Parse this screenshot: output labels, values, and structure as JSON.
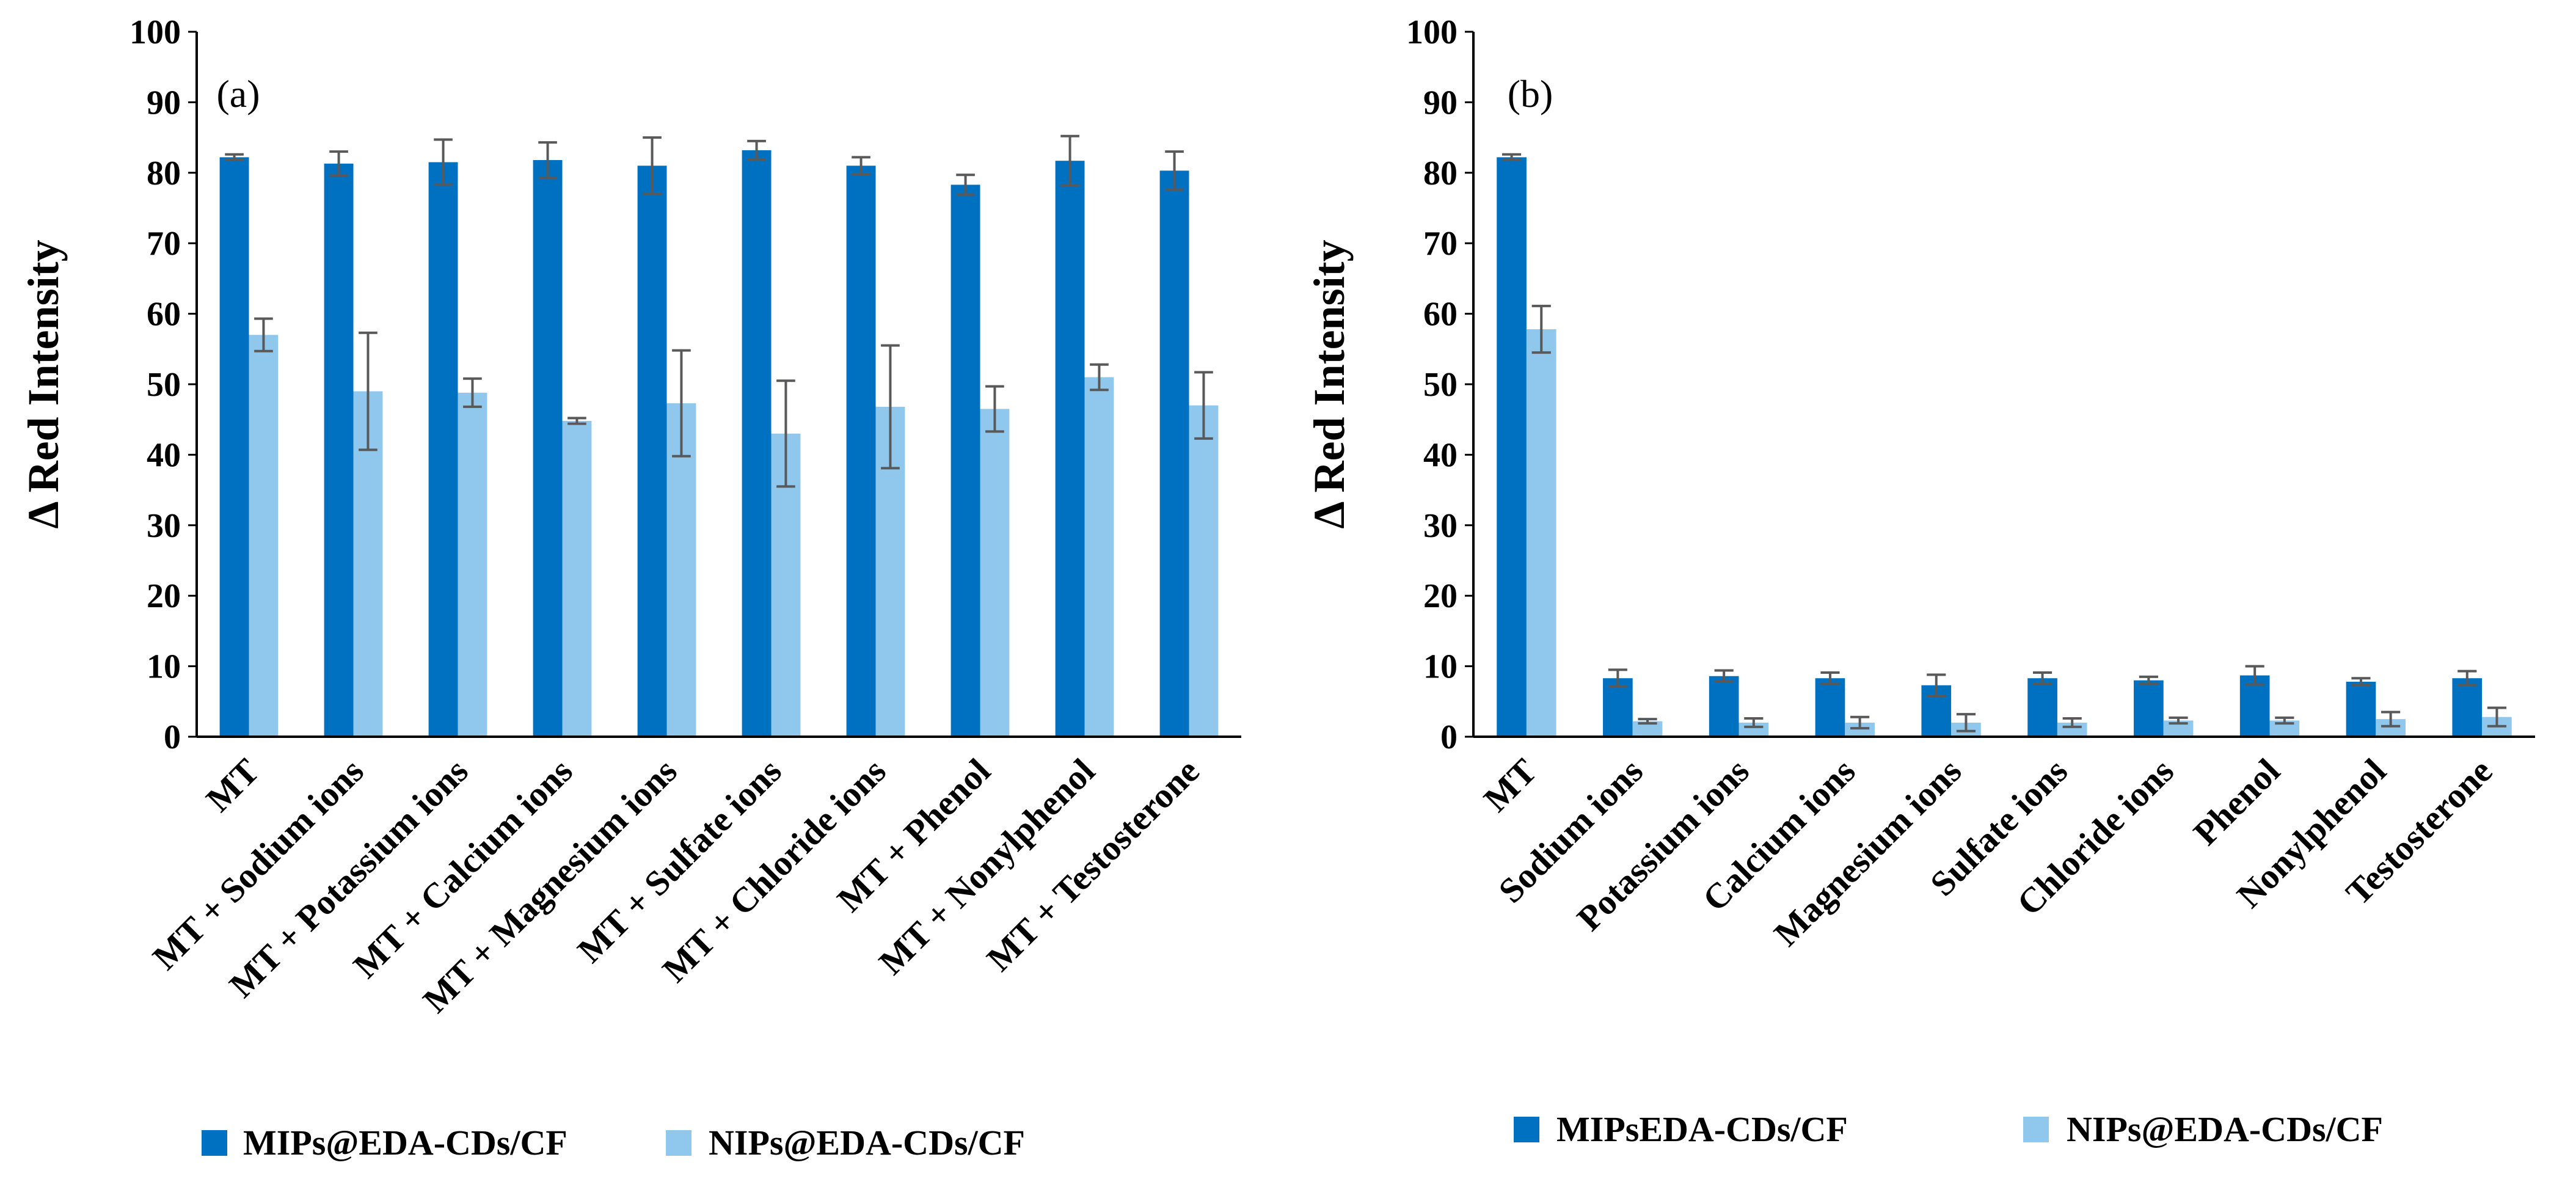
{
  "chart_data": [
    {
      "type": "bar",
      "panel_label": "(a)",
      "ylabel": "Δ Red Intensity",
      "ylim": [
        0,
        100
      ],
      "yticks": [
        0,
        10,
        20,
        30,
        40,
        50,
        60,
        70,
        80,
        90,
        100
      ],
      "grid": false,
      "legend_position": "bottom",
      "categories": [
        "MT",
        "MT + Sodium ions",
        "MT + Potassium ions",
        "MT + Calcium ions",
        "MT + Magnesium ions",
        "MT + Sulfate ions",
        "MT + Chloride ions",
        "MT + Phenol",
        "MT + Nonylphenol",
        "MT + Testosterone"
      ],
      "series": [
        {
          "name": "MIPs@EDA-CDs/CF",
          "color": "#0070C0",
          "values": [
            82.2,
            81.3,
            81.5,
            81.8,
            81.0,
            83.2,
            81.0,
            78.3,
            81.7,
            80.3
          ],
          "errors": [
            0.4,
            1.7,
            3.2,
            2.5,
            4.0,
            1.3,
            1.2,
            1.4,
            3.5,
            2.7
          ]
        },
        {
          "name": "NIPs@EDA-CDs/CF",
          "color": "#8FC8EC",
          "values": [
            57.0,
            49.0,
            48.8,
            44.8,
            47.3,
            43.0,
            46.8,
            46.5,
            51.0,
            47.0
          ],
          "errors": [
            2.3,
            8.3,
            2.0,
            0.4,
            7.5,
            7.5,
            8.7,
            3.2,
            1.8,
            4.7
          ]
        }
      ]
    },
    {
      "type": "bar",
      "panel_label": "(b)",
      "ylabel": "Δ Red Intensity",
      "ylim": [
        0,
        100
      ],
      "yticks": [
        0,
        10,
        20,
        30,
        40,
        50,
        60,
        70,
        80,
        90,
        100
      ],
      "grid": false,
      "legend_position": "bottom",
      "categories": [
        "MT",
        "Sodium ions",
        "Potassium ions",
        "Calcium ions",
        "Magnesium ions",
        "Sulfate ions",
        "Chloride ions",
        "Phenol",
        "Nonylphenol",
        "Testosterone"
      ],
      "series": [
        {
          "name": "MIPsEDA-CDs/CF",
          "color": "#0070C0",
          "values": [
            82.2,
            8.3,
            8.6,
            8.3,
            7.3,
            8.3,
            8.0,
            8.7,
            7.8,
            8.3
          ],
          "errors": [
            0.4,
            1.2,
            0.8,
            0.8,
            1.5,
            0.8,
            0.5,
            1.3,
            0.5,
            1.0
          ]
        },
        {
          "name": "NIPs@EDA-CDs/CF",
          "color": "#8FC8EC",
          "values": [
            57.8,
            2.2,
            2.0,
            2.0,
            2.0,
            2.0,
            2.3,
            2.3,
            2.5,
            2.8
          ],
          "errors": [
            3.3,
            0.3,
            0.6,
            0.8,
            1.2,
            0.6,
            0.4,
            0.4,
            1.0,
            1.3
          ]
        }
      ]
    }
  ]
}
